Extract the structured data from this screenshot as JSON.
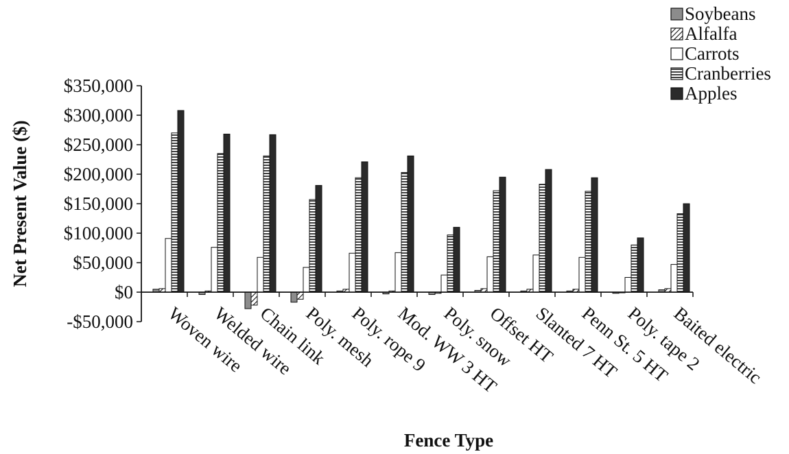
{
  "chart_data": {
    "type": "bar",
    "title": "",
    "xlabel": "Fence Type",
    "ylabel": "Net Present Value ($)",
    "ylim": [
      -50000,
      350000
    ],
    "yticks": [
      {
        "value": 350000,
        "label": "$350,000"
      },
      {
        "value": 300000,
        "label": "$300,000"
      },
      {
        "value": 250000,
        "label": "$250,000"
      },
      {
        "value": 200000,
        "label": "$200,000"
      },
      {
        "value": 150000,
        "label": "$150,000"
      },
      {
        "value": 100000,
        "label": "$100,000"
      },
      {
        "value": 50000,
        "label": "$50,000"
      },
      {
        "value": 0,
        "label": "$0"
      },
      {
        "value": -50000,
        "label": "-$50,000"
      }
    ],
    "grid": false,
    "legend_position": "top-right",
    "categories": [
      "Woven wire",
      "Welded wire",
      "Chain link",
      "Poly. mesh",
      "Poly. rope 9",
      "Mod. WW 3 HT",
      "Poly. snow",
      "Offset HT",
      "Slanted 7 HT",
      "Penn St. 5 HT",
      "Poly. tape 2",
      "Baited electric"
    ],
    "series": [
      {
        "name": "Soybeans",
        "pattern": "gray",
        "color": "#8c8c8c",
        "values": [
          5000,
          -4000,
          -28000,
          -17000,
          2000,
          -3000,
          -4000,
          3000,
          2000,
          2000,
          -2000,
          4000
        ]
      },
      {
        "name": "Alfalfa",
        "pattern": "diagonal",
        "color": "#ffffff",
        "values": [
          6000,
          2000,
          -22000,
          -12000,
          5000,
          2000,
          -2000,
          6000,
          5000,
          5000,
          -1000,
          6000
        ]
      },
      {
        "name": "Carrots",
        "pattern": "white",
        "color": "#ffffff",
        "values": [
          91000,
          76000,
          59000,
          42000,
          66000,
          67000,
          29000,
          60000,
          63000,
          59000,
          25000,
          47000
        ]
      },
      {
        "name": "Cranberries",
        "pattern": "horizontal",
        "color": "#ffffff",
        "values": [
          270000,
          235000,
          231000,
          157000,
          194000,
          203000,
          97000,
          172000,
          183000,
          171000,
          80000,
          133000
        ]
      },
      {
        "name": "Apples",
        "pattern": "dark",
        "color": "#2a2a2a",
        "values": [
          308000,
          268000,
          267000,
          181000,
          221000,
          231000,
          110000,
          195000,
          208000,
          194000,
          92000,
          150000
        ]
      }
    ]
  }
}
